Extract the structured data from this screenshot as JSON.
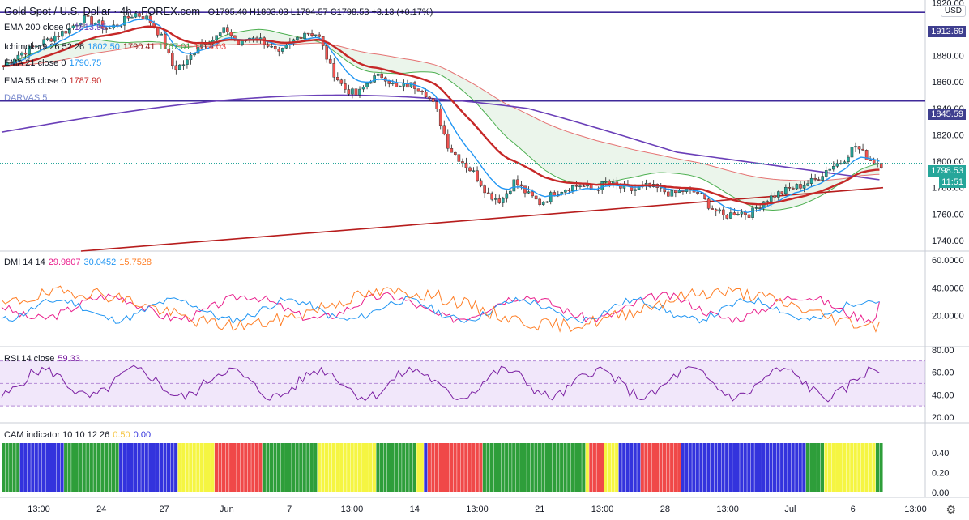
{
  "header": {
    "symbol": "Gold Spot / U.S. Dollar · 4h · FOREX.com",
    "ohlc": "O1795.40 H1803.03 L1794.57 C1798.53 +3.13 (+0.17%)"
  },
  "legends": {
    "ema200": {
      "label": "EMA 200 close 0",
      "value": "1813.95"
    },
    "ichimoku": {
      "label": "Ichimoku 9 26 52 26",
      "values": [
        "1802.50",
        "1790.41",
        "1767.01",
        "1774.03"
      ]
    },
    "ema21": {
      "label": "EMA 21 close 0",
      "value": "1790.75"
    },
    "ema55": {
      "label": "EMA 55 close 0",
      "value": "1787.90"
    },
    "darvas": {
      "label": "DARVAS 5"
    },
    "dmi": {
      "label": "DMI 14 14",
      "values": [
        "29.9807",
        "30.0452",
        "15.7528"
      ]
    },
    "rsi": {
      "label": "RSI 14 close",
      "value": "59.33"
    },
    "cam": {
      "label": "CAM indicator 10 10 12 26",
      "values": [
        "0.50",
        "0.00"
      ]
    }
  },
  "currency_button": "USD",
  "colors": {
    "ema200": "#6a3fb8",
    "ema55": "#c62828",
    "ema21": "#2196f3",
    "up": "#26a69a",
    "down": "#ef5350",
    "dmi_plus": "#e91e8c",
    "dmi_minus": "#2196f3",
    "adx": "#ff7f27",
    "rsi": "#7b1fa2",
    "cam_green": "#2e9e3a",
    "cam_blue": "#3333dd",
    "cam_red": "#f04848",
    "cam_yellow": "#f5f542"
  },
  "chart_data": {
    "type": "candlestick",
    "x_ticks": [
      "13:00",
      "24",
      "27",
      "Jun",
      "7",
      "13:00",
      "14",
      "13:00",
      "21",
      "13:00",
      "28",
      "13:00",
      "Jul",
      "6",
      "13:00"
    ],
    "price_axis": {
      "ticks": [
        1740,
        1760,
        1780,
        1800,
        1820,
        1840,
        1860,
        1880,
        1900,
        1920
      ],
      "ylim": [
        1732,
        1922
      ],
      "labels": {
        "level1": "1912.69",
        "level2": "1845.59",
        "last": "1798.53",
        "countdown": "11:51"
      }
    },
    "horizontal_levels": [
      1912.69,
      1845.59
    ],
    "price_series": {
      "close_path": [
        1872,
        1880,
        1885,
        1890,
        1895,
        1900,
        1908,
        1905,
        1900,
        1905,
        1912,
        1908,
        1895,
        1870,
        1875,
        1890,
        1892,
        1900,
        1888,
        1895,
        1890,
        1880,
        1890,
        1898,
        1896,
        1870,
        1855,
        1850,
        1862,
        1865,
        1855,
        1858,
        1855,
        1840,
        1810,
        1800,
        1790,
        1775,
        1770,
        1785,
        1775,
        1768,
        1776,
        1780,
        1782,
        1778,
        1784,
        1780,
        1778,
        1781,
        1779,
        1775,
        1778,
        1776,
        1765,
        1758,
        1762,
        1760,
        1770,
        1775,
        1779,
        1782,
        1786,
        1795,
        1800,
        1812,
        1802,
        1798
      ]
    },
    "dmi": {
      "ylim": [
        0,
        60
      ],
      "ticks": [
        20,
        40,
        60
      ],
      "plus_di": 29.9807,
      "minus_di": 30.0452,
      "adx": 15.7528
    },
    "rsi": {
      "ylim": [
        15,
        82
      ],
      "ticks": [
        20,
        40,
        60,
        80
      ],
      "value": 59.33
    },
    "cam": {
      "ylim": [
        0,
        0.5
      ],
      "ticks": [
        "0.00",
        "0.20",
        "0.40"
      ]
    }
  }
}
